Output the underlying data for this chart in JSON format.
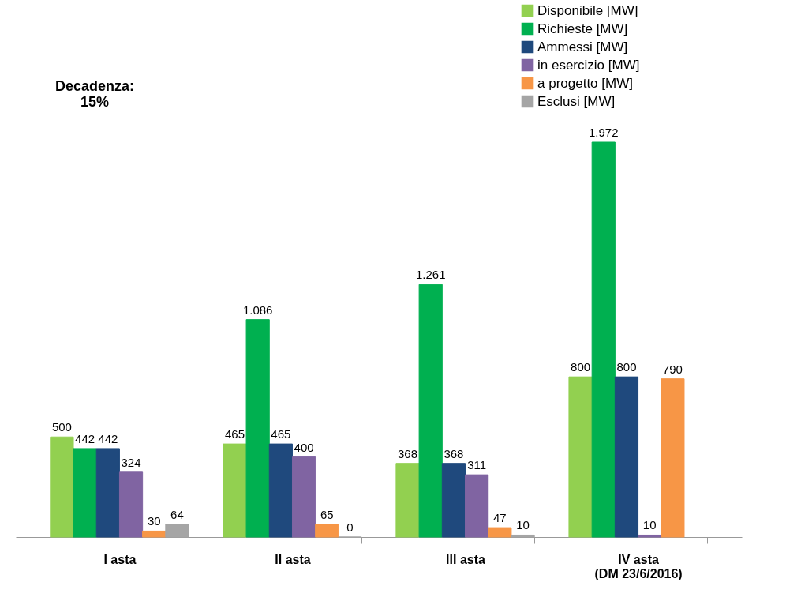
{
  "chart_data": {
    "type": "bar",
    "categories": [
      "I asta",
      "II asta",
      "III asta",
      "IV asta\n(DM 23/6/2016)"
    ],
    "series": [
      {
        "name": "Disponibile [MW]",
        "color": "#92d050",
        "values": [
          500,
          465,
          368,
          800
        ],
        "value_labels": [
          "500",
          "465",
          "368",
          "800"
        ]
      },
      {
        "name": "Richieste [MW]",
        "color": "#00b050",
        "values": [
          442,
          1086,
          1261,
          1972
        ],
        "value_labels": [
          "442",
          "1.086",
          "1.261",
          "1.972"
        ]
      },
      {
        "name": "Ammessi [MW]",
        "color": "#1f497d",
        "values": [
          442,
          465,
          368,
          800
        ],
        "value_labels": [
          "442",
          "465",
          "368",
          "800"
        ]
      },
      {
        "name": "in esercizio [MW]",
        "color": "#8064a2",
        "values": [
          324,
          400,
          311,
          10
        ],
        "value_labels": [
          "324",
          "400",
          "311",
          "10"
        ]
      },
      {
        "name": "a progetto [MW]",
        "color": "#f79646",
        "values": [
          30,
          65,
          47,
          790
        ],
        "value_labels": [
          "30",
          "65",
          "47",
          "790"
        ]
      },
      {
        "name": "Esclusi [MW]",
        "color": "#a5a5a5",
        "values": [
          64,
          0,
          10,
          null
        ],
        "value_labels": [
          "64",
          "0",
          "10",
          null
        ]
      }
    ],
    "annotations": [
      "Decadenza:\n15%"
    ],
    "legend": "top right",
    "tick_labels": "x",
    "grid": false
  }
}
